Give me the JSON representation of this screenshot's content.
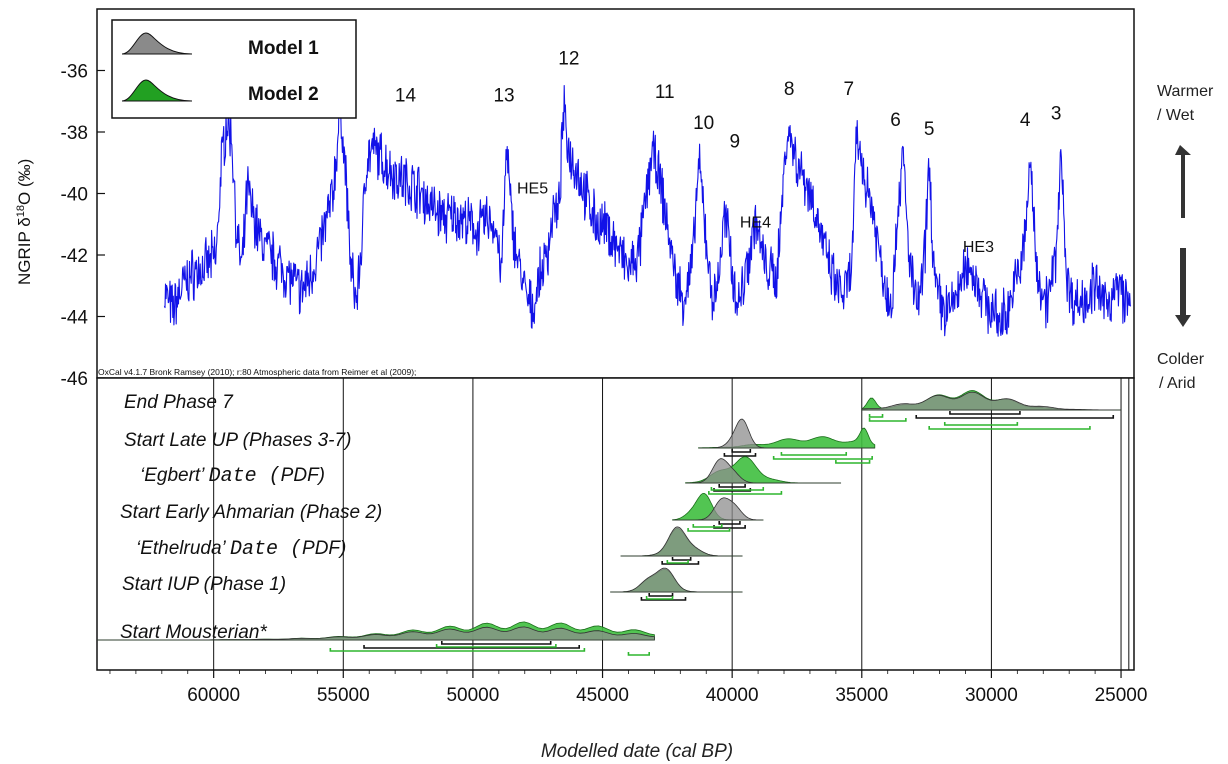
{
  "chart_data": {
    "type": "line",
    "x_axis": {
      "label": "Modelled date (cal BP)",
      "range": [
        64500,
        24500
      ],
      "reversed": true,
      "ticks": [
        60000,
        55000,
        50000,
        45000,
        40000,
        35000,
        30000,
        25000
      ],
      "tick_labels": [
        "60000",
        "55000",
        "50000",
        "45000",
        "40000",
        "35000",
        "30000",
        "25000"
      ]
    },
    "top_panel": {
      "y_label_prefix": "NGRIP",
      "y_label_main": "δ",
      "y_label_sup": "18",
      "y_label_suffix": "O (‰)",
      "y_range": [
        -46,
        -34
      ],
      "y_ticks": [
        -36,
        -38,
        -40,
        -42,
        -44,
        -46
      ],
      "y_tick_labels": [
        "-36",
        "-38",
        "-40",
        "-42",
        "-44",
        "-46"
      ],
      "series_color": "#1212e8",
      "series": [
        {
          "x": [
            61900,
            61600,
            61200,
            60800,
            60300,
            59900,
            59700,
            59500,
            59300,
            59100,
            58900,
            58700,
            58500,
            58200,
            57800,
            57400,
            57000,
            56600,
            56200,
            55800,
            55400,
            55100,
            54900,
            54700,
            54500,
            54300,
            54100,
            53800,
            53400,
            53000,
            52600,
            52200,
            51800,
            51400,
            51000,
            50600,
            50200,
            49800,
            49400,
            49100,
            48900,
            48700,
            48500,
            48300,
            48100,
            47900,
            47700,
            47500,
            47300,
            47100,
            46900,
            46700,
            46500,
            46300,
            46000,
            45600,
            45200,
            44800,
            44400,
            44000,
            43600,
            43300,
            43100,
            42900,
            42700,
            42500,
            42300,
            42100,
            41900,
            41700,
            41500,
            41300,
            41100,
            40900,
            40700,
            40500,
            40300,
            40100,
            39900,
            39700,
            39500,
            39300,
            39100,
            38900,
            38700,
            38500,
            38300,
            38100,
            37900,
            37700,
            37500,
            37200,
            36900,
            36600,
            36300,
            36000,
            35700,
            35400,
            35200,
            35000,
            34800,
            34600,
            34400,
            34200,
            34000,
            33800,
            33600,
            33400,
            33200,
            33000,
            32800,
            32600,
            32400,
            32200,
            32000,
            31800,
            31500,
            31200,
            30900,
            30600,
            30300,
            30000,
            29700,
            29400,
            29100,
            28900,
            28700,
            28500,
            28300,
            28100,
            27900,
            27700,
            27500,
            27300,
            27100,
            26900,
            26600,
            26300,
            26000,
            25700,
            25400,
            25100,
            24800,
            24600
          ],
          "y": [
            -43.2,
            -43.8,
            -43.0,
            -42.6,
            -42.4,
            -42.0,
            -39.0,
            -37.6,
            -38.2,
            -41.5,
            -42.5,
            -39.8,
            -40.6,
            -41.5,
            -42.0,
            -42.4,
            -42.8,
            -43.2,
            -42.5,
            -41.4,
            -40.0,
            -37.2,
            -39.5,
            -42.5,
            -43.5,
            -41.8,
            -38.8,
            -38.6,
            -39.0,
            -39.4,
            -39.6,
            -39.8,
            -40.2,
            -40.6,
            -40.8,
            -40.7,
            -41.0,
            -41.2,
            -40.8,
            -41.2,
            -42.6,
            -38.5,
            -40.9,
            -42.0,
            -42.8,
            -43.5,
            -43.8,
            -43.0,
            -42.4,
            -41.8,
            -40.5,
            -40.8,
            -37.3,
            -38.6,
            -39.2,
            -40.2,
            -41.0,
            -41.2,
            -41.8,
            -42.5,
            -42.0,
            -40.0,
            -38.6,
            -39.2,
            -40.0,
            -41.0,
            -42.2,
            -43.0,
            -43.4,
            -43.0,
            -42.0,
            -39.0,
            -40.5,
            -42.5,
            -43.6,
            -42.5,
            -40.8,
            -41.5,
            -43.2,
            -43.5,
            -42.6,
            -41.8,
            -40.8,
            -41.8,
            -42.4,
            -42.6,
            -42.8,
            -40.6,
            -38.0,
            -38.3,
            -39.0,
            -39.5,
            -40.2,
            -41.2,
            -42.3,
            -43.0,
            -43.3,
            -42.6,
            -38.2,
            -39.0,
            -39.8,
            -40.4,
            -41.5,
            -42.5,
            -43.4,
            -43.2,
            -40.3,
            -38.8,
            -41.8,
            -43.2,
            -43.6,
            -42.4,
            -39.0,
            -42.8,
            -43.5,
            -43.8,
            -43.6,
            -43.0,
            -42.3,
            -42.8,
            -43.4,
            -43.8,
            -44.2,
            -43.8,
            -43.0,
            -42.4,
            -41.5,
            -38.8,
            -42.0,
            -43.0,
            -43.5,
            -43.0,
            -42.0,
            -38.5,
            -42.8,
            -43.4,
            -43.6,
            -43.3,
            -43.0,
            -43.6,
            -43.4,
            -43.0,
            -43.5,
            -43.8
          ],
          "noise": 0.7
        }
      ],
      "annotations": [
        {
          "text": "14",
          "x": 52600,
          "y": -37.0
        },
        {
          "text": "13",
          "x": 48800,
          "y": -37.0
        },
        {
          "text": "12",
          "x": 46300,
          "y": -35.8
        },
        {
          "text": "11",
          "x": 42600,
          "y": -36.9
        },
        {
          "text": "10",
          "x": 41100,
          "y": -37.9
        },
        {
          "text": "9",
          "x": 39900,
          "y": -38.5
        },
        {
          "text": "8",
          "x": 37800,
          "y": -36.8
        },
        {
          "text": "7",
          "x": 35500,
          "y": -36.8
        },
        {
          "text": "6",
          "x": 33700,
          "y": -37.8
        },
        {
          "text": "5",
          "x": 32400,
          "y": -38.1
        },
        {
          "text": "4",
          "x": 28700,
          "y": -37.8
        },
        {
          "text": "3",
          "x": 27500,
          "y": -37.6
        },
        {
          "text": "HE5",
          "x": 47700,
          "y": -40.0
        },
        {
          "text": "HE4",
          "x": 39100,
          "y": -41.1
        },
        {
          "text": "HE3",
          "x": 30500,
          "y": -41.9
        }
      ],
      "credit": "OxCal v4.1.7 Bronk Ramsey (2010); r:80   Atmospheric data from Reimer et al (2009);"
    },
    "legend": {
      "placement": "top-left",
      "entries": [
        {
          "label": "Model 1",
          "color": "#8a8a8a"
        },
        {
          "label": "Model 2",
          "color": "#22a022"
        }
      ]
    },
    "side_labels": {
      "top_line1": "Warmer",
      "top_line2": "/ Wet",
      "bottom_line1": "Colder",
      "bottom_line2": "/ Arid"
    },
    "bottom_panel": {
      "type": "density",
      "vertical_gridlines": [
        60000,
        55000,
        50000,
        45000,
        40000,
        35000,
        30000,
        25000
      ],
      "rows": [
        {
          "label": "End Phase 7",
          "plain": "",
          "mono": "",
          "tail": "",
          "extent": [
            35000,
            25000
          ],
          "m1": {
            "peak": 31000,
            "width": 1700,
            "h": 0.55
          },
          "m2": {
            "peak": 31000,
            "width": 1500,
            "h": 0.6,
            "spike": 34600
          },
          "m1_ranges": [
            [
              31600,
              28900
            ],
            [
              32900,
              25300
            ]
          ],
          "m2_ranges": [
            [
              34700,
              34200
            ],
            [
              34700,
              33300
            ],
            [
              31800,
              29000
            ],
            [
              32400,
              26200
            ]
          ]
        },
        {
          "label": "Start Late UP (Phases 3-7)",
          "plain": "",
          "mono": "",
          "tail": "",
          "extent": [
            41300,
            34500
          ],
          "m1": {
            "peak": 39700,
            "width": 300,
            "h": 1.0
          },
          "m2": {
            "peak": 36800,
            "width": 1600,
            "h": 0.35,
            "spike": 34900
          },
          "m1_ranges": [
            [
              40000,
              39300
            ],
            [
              40300,
              39100
            ]
          ],
          "m2_ranges": [
            [
              38100,
              35600
            ],
            [
              38400,
              34600
            ],
            [
              36000,
              34700
            ]
          ]
        },
        {
          "label": "",
          "plain": "‘Egbert’ ",
          "mono": "Date (",
          "tail": "PDF)",
          "extent": [
            41800,
            35800
          ],
          "m1": {
            "peak": 40300,
            "width": 350,
            "h": 1.0
          },
          "m2": {
            "peak": 39700,
            "width": 700,
            "h": 0.85
          },
          "m1_ranges": [
            [
              40500,
              39500
            ],
            [
              40700,
              39300
            ]
          ],
          "m2_ranges": [
            [
              40800,
              38800
            ],
            [
              40900,
              38100
            ]
          ]
        },
        {
          "label": "Start Early Ahmarian (Phase 2)",
          "plain": "",
          "mono": "",
          "tail": "",
          "extent": [
            42300,
            38800
          ],
          "m1": {
            "peak": 40200,
            "width": 350,
            "h": 1.0
          },
          "m2": {
            "peak": 41200,
            "width": 350,
            "h": 0.95
          },
          "m1_ranges": [
            [
              40500,
              39700
            ],
            [
              40700,
              39500
            ]
          ],
          "m2_ranges": [
            [
              41500,
              40400
            ],
            [
              41700,
              40100
            ]
          ]
        },
        {
          "label": "",
          "plain": "‘Ethelruda’ ",
          "mono": "Date (",
          "tail": "PDF)",
          "extent": [
            44300,
            39600
          ],
          "m1": {
            "peak": 42000,
            "width": 450,
            "h": 0.95
          },
          "m2": {
            "peak": 42000,
            "width": 450,
            "h": 0.9
          },
          "m1_ranges": [
            [
              42300,
              41600
            ],
            [
              42700,
              41300
            ]
          ],
          "m2_ranges": [
            [
              42500,
              41700
            ]
          ]
        },
        {
          "label": "Start IUP (Phase 1)",
          "plain": "",
          "mono": "",
          "tail": "",
          "extent": [
            44700,
            39600
          ],
          "m1": {
            "peak": 42800,
            "width": 450,
            "h": 0.95
          },
          "m2": {
            "peak": 42800,
            "width": 450,
            "h": 0.9
          },
          "m1_ranges": [
            [
              43200,
              42300
            ],
            [
              43500,
              41800
            ]
          ],
          "m2_ranges": [
            [
              43300,
              42300
            ]
          ]
        },
        {
          "label": "Start Mousterian*",
          "plain": "",
          "mono": "",
          "tail": "",
          "extent": [
            64500,
            43000
          ],
          "m1": {
            "peak": 48500,
            "width": 4000,
            "h": 0.4
          },
          "m2": {
            "peak": 48000,
            "width": 4000,
            "h": 0.55
          },
          "m1_ranges": [
            [
              51200,
              47000
            ],
            [
              54200,
              45900
            ]
          ],
          "m2_ranges": [
            [
              51400,
              46800
            ],
            [
              55500,
              45700
            ],
            [
              44000,
              43200
            ]
          ]
        }
      ]
    }
  }
}
